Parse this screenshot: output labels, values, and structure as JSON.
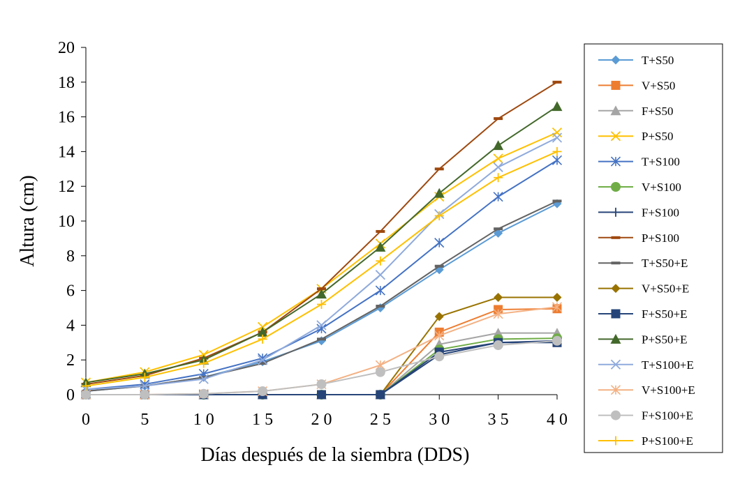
{
  "chart_data": {
    "type": "line",
    "title": "",
    "xlabel": "Días después de la siembra (DDS)",
    "ylabel": "Altura (cm)",
    "x": [
      0,
      5,
      10,
      15,
      20,
      25,
      30,
      35,
      40
    ],
    "x_tick_labels": [
      "0",
      "5",
      "1 0",
      "1 5",
      "2 0",
      "2 5",
      "3 0",
      "3 5",
      "4 0"
    ],
    "xlim": [
      0,
      40
    ],
    "ylim": [
      0,
      20
    ],
    "y_ticks": [
      0,
      2,
      4,
      6,
      8,
      10,
      12,
      14,
      16,
      18,
      20
    ],
    "y_tick_labels": [
      "0",
      "2",
      "4",
      "6",
      "8",
      "10",
      "12",
      "14",
      "16",
      "18",
      "20"
    ],
    "grid": false,
    "legend_position": "right",
    "series": [
      {
        "name": "T+S50",
        "color": "#5B9BD5",
        "marker": "diamond",
        "values": [
          0.2,
          0.5,
          1.0,
          1.9,
          3.1,
          5.0,
          7.2,
          9.3,
          11.0
        ]
      },
      {
        "name": "V+S50",
        "color": "#ED7D31",
        "marker": "square",
        "values": [
          0.0,
          0.0,
          0.0,
          0.0,
          0.0,
          0.0,
          3.6,
          4.9,
          4.95
        ]
      },
      {
        "name": "F+S50",
        "color": "#A5A5A5",
        "marker": "triangle",
        "values": [
          0.0,
          0.0,
          0.0,
          0.0,
          0.0,
          0.0,
          2.9,
          3.55,
          3.55
        ]
      },
      {
        "name": "P+S50",
        "color": "#FFC000",
        "marker": "x",
        "values": [
          0.7,
          1.3,
          2.3,
          3.9,
          6.1,
          8.7,
          11.4,
          13.6,
          15.1
        ]
      },
      {
        "name": "T+S100",
        "color": "#4472C4",
        "marker": "star",
        "values": [
          0.3,
          0.6,
          1.2,
          2.1,
          3.8,
          6.0,
          8.75,
          11.4,
          13.5
        ]
      },
      {
        "name": "V+S100",
        "color": "#70AD47",
        "marker": "circle",
        "values": [
          0.0,
          0.0,
          0.0,
          0.0,
          0.0,
          0.0,
          2.6,
          3.2,
          3.25
        ]
      },
      {
        "name": "F+S100",
        "color": "#264478",
        "marker": "plus",
        "values": [
          0.0,
          0.0,
          0.0,
          0.0,
          0.0,
          0.0,
          2.3,
          3.0,
          3.1
        ]
      },
      {
        "name": "P+S100",
        "color": "#9E480E",
        "marker": "dash",
        "values": [
          0.6,
          1.1,
          2.1,
          3.6,
          6.1,
          9.4,
          13.0,
          15.9,
          18.0
        ]
      },
      {
        "name": "T+S50+E",
        "color": "#636363",
        "marker": "dash",
        "values": [
          0.2,
          0.5,
          1.0,
          1.8,
          3.2,
          5.1,
          7.4,
          9.55,
          11.15
        ]
      },
      {
        "name": "V+S50+E",
        "color": "#997300",
        "marker": "diamond",
        "values": [
          0.0,
          0.0,
          0.0,
          0.0,
          0.0,
          0.0,
          4.5,
          5.6,
          5.6
        ]
      },
      {
        "name": "F+S50+E",
        "color": "#264478",
        "marker": "square",
        "values": [
          0.0,
          0.0,
          0.0,
          0.0,
          0.0,
          0.0,
          2.45,
          3.0,
          3.0
        ]
      },
      {
        "name": "P+S50+E",
        "color": "#43682B",
        "marker": "triangle",
        "values": [
          0.7,
          1.2,
          2.0,
          3.6,
          5.8,
          8.5,
          11.6,
          14.35,
          16.6
        ]
      },
      {
        "name": "T+S100+E",
        "color": "#8FAADC",
        "marker": "x",
        "values": [
          0.3,
          0.5,
          0.9,
          2.0,
          4.0,
          6.9,
          10.4,
          13.1,
          14.8
        ]
      },
      {
        "name": "V+S100+E",
        "color": "#F4B183",
        "marker": "star",
        "values": [
          0.0,
          0.0,
          0.05,
          0.2,
          0.6,
          1.7,
          3.4,
          4.65,
          5.05
        ]
      },
      {
        "name": "F+S100+E",
        "color": "#BFBFBF",
        "marker": "circle",
        "values": [
          0.0,
          0.0,
          0.05,
          0.2,
          0.6,
          1.3,
          2.2,
          2.85,
          3.1
        ]
      },
      {
        "name": "P+S100+E",
        "color": "#FFC000",
        "marker": "plus",
        "values": [
          0.5,
          1.0,
          1.8,
          3.2,
          5.2,
          7.7,
          10.3,
          12.5,
          14.0
        ]
      }
    ]
  }
}
